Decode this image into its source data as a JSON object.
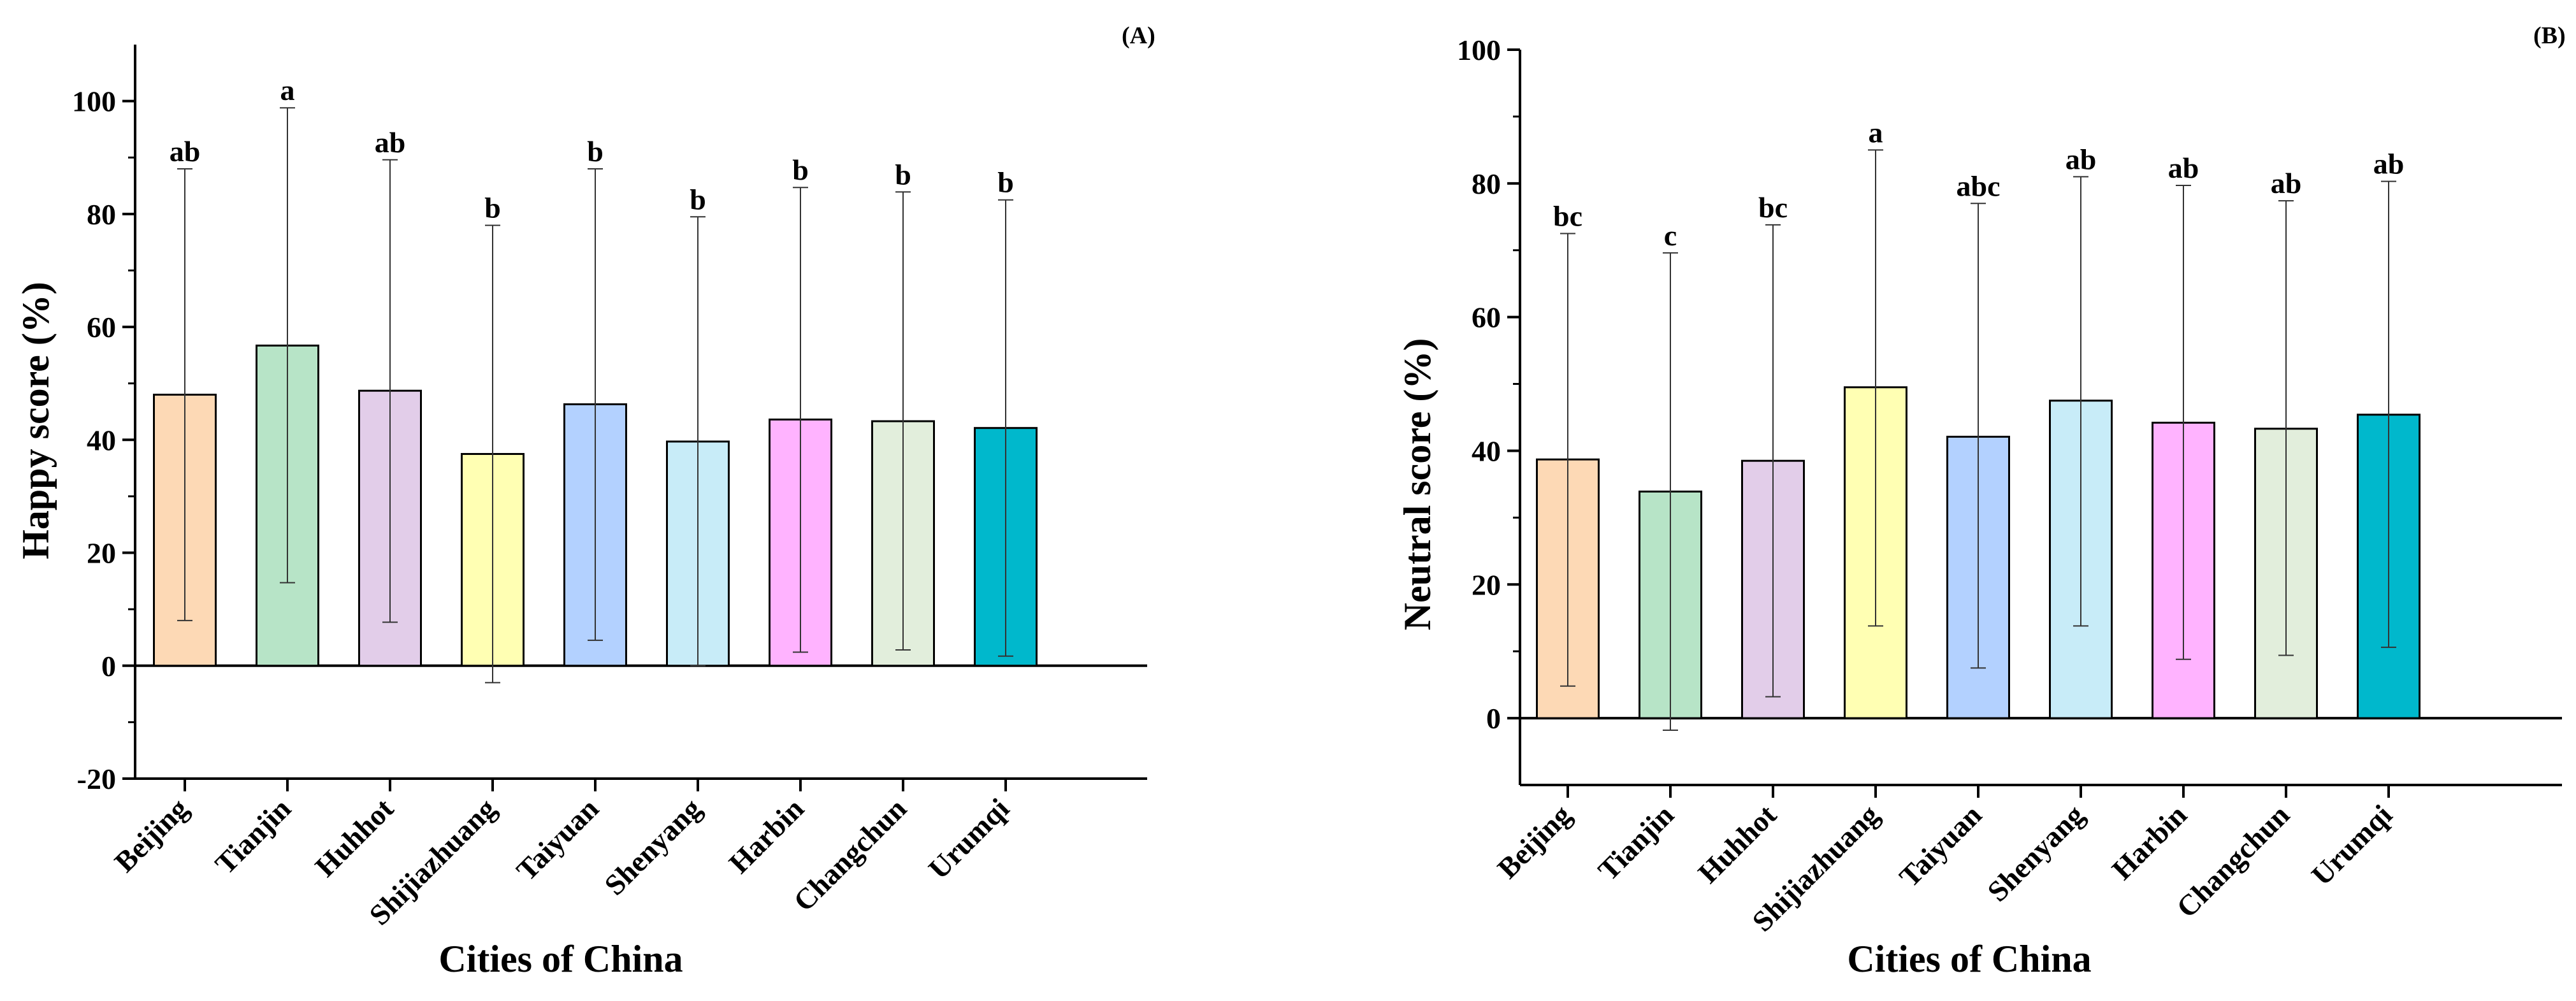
{
  "chart_data": [
    {
      "type": "bar",
      "panel_label": "(A)",
      "xlabel": "Cities of China",
      "ylabel": "Happy score (%)",
      "ylim": [
        -20,
        110
      ],
      "yticks": [
        -20,
        0,
        20,
        40,
        60,
        80,
        100
      ],
      "categories": [
        "Beijing",
        "Tianjin",
        "Huhhot",
        "Shijiazhuang",
        "Taiyuan",
        "Shenyang",
        "Harbin",
        "Changchun",
        "Urumqi"
      ],
      "series": [
        {
          "values": [
            48,
            56.7,
            48.7,
            37.5,
            46.3,
            39.7,
            43.6,
            43.3,
            42.1
          ],
          "error_upper": [
            88,
            98.8,
            89.6,
            78,
            88,
            79.5,
            84.7,
            83.9,
            82.5
          ],
          "error_lower": [
            8,
            14.7,
            7.7,
            -3,
            4.5,
            0,
            2.4,
            2.8,
            1.7
          ],
          "significance": [
            "ab",
            "a",
            "ab",
            "b",
            "b",
            "b",
            "b",
            "b",
            "b"
          ]
        }
      ],
      "colors": [
        "#fdd9b5",
        "#b7e4c7",
        "#e2cde9",
        "#ffffb3",
        "#b3d1ff",
        "#c8ecf8",
        "#ffb3ff",
        "#e2eedc",
        "#00b8cc"
      ]
    },
    {
      "type": "bar",
      "panel_label": "(B)",
      "xlabel": "Cities of China",
      "ylabel": "Neutral score (%)",
      "ylim": [
        -10,
        100
      ],
      "yticks": [
        0,
        20,
        40,
        60,
        80,
        100
      ],
      "categories": [
        "Beijing",
        "Tianjin",
        "Huhhot",
        "Shijiazhuang",
        "Taiyuan",
        "Shenyang",
        "Harbin",
        "Changchun",
        "Urumqi"
      ],
      "series": [
        {
          "values": [
            38.7,
            33.9,
            38.5,
            49.5,
            42.1,
            47.5,
            44.2,
            43.3,
            45.4
          ],
          "error_upper": [
            72.5,
            69.6,
            73.8,
            85,
            77,
            81,
            79.7,
            77.4,
            80.3
          ],
          "error_lower": [
            4.8,
            -1.8,
            3.2,
            13.8,
            7.5,
            13.8,
            8.8,
            9.4,
            10.6
          ],
          "significance": [
            "bc",
            "c",
            "bc",
            "a",
            "abc",
            "ab",
            "ab",
            "ab",
            "ab"
          ]
        }
      ],
      "colors": [
        "#fdd9b5",
        "#b7e4c7",
        "#e2cde9",
        "#ffffb3",
        "#b3d1ff",
        "#c8ecf8",
        "#ffb3ff",
        "#e2eedc",
        "#00b8cc"
      ]
    }
  ]
}
